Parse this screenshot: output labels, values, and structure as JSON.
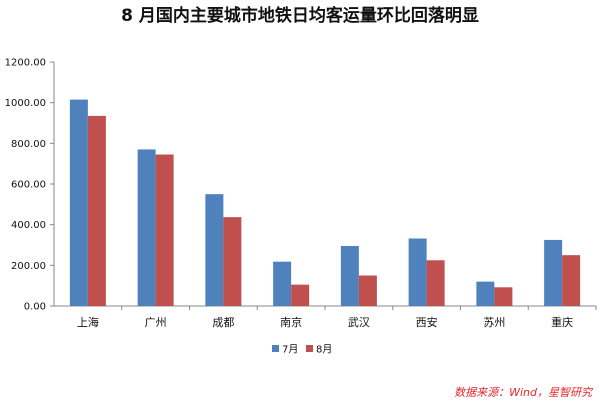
{
  "chart_data": {
    "type": "bar",
    "title": "8 月国内主要城市地铁日均客运量环比回落明显",
    "categories": [
      "上海",
      "广州",
      "成都",
      "南京",
      "武汉",
      "西安",
      "苏州",
      "重庆"
    ],
    "series": [
      {
        "name": "7月",
        "color": "#4f81bd",
        "values": [
          1015,
          770,
          550,
          218,
          295,
          332,
          120,
          325
        ]
      },
      {
        "name": "8月",
        "color": "#c0504d",
        "values": [
          935,
          745,
          437,
          105,
          150,
          225,
          92,
          250
        ]
      }
    ],
    "ylim": [
      0,
      1200
    ],
    "yticks": [
      "0.00",
      "200.00",
      "400.00",
      "600.00",
      "800.00",
      "1000.00",
      "1200.00"
    ],
    "xlabel": "",
    "ylabel": "",
    "grid": false,
    "legend": "bottom",
    "source": "数据来源：Wind，星智研究"
  }
}
